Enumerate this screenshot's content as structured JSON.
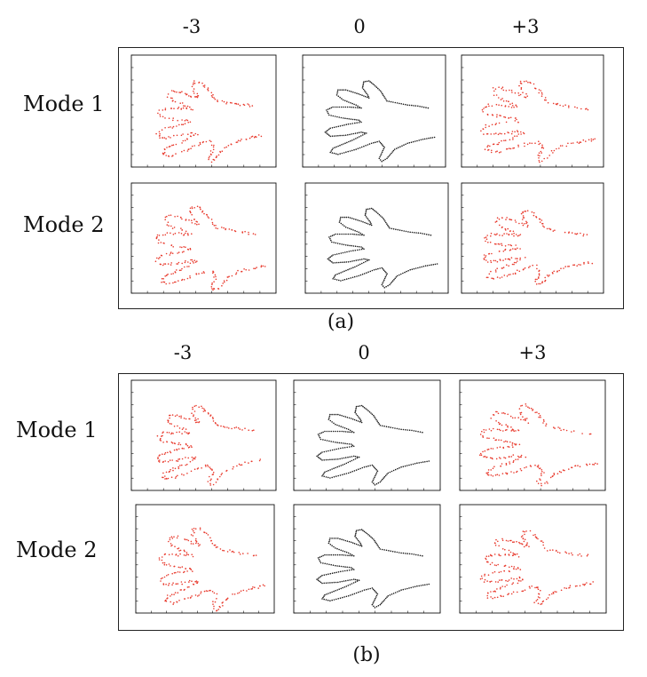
{
  "figure": {
    "panels": [
      {
        "caption": "(a)",
        "columns": [
          "-3",
          "0",
          "+3"
        ],
        "rows": [
          "Mode 1",
          "Mode 2"
        ]
      },
      {
        "caption": "(b)",
        "columns": [
          "-3",
          "0",
          "+3"
        ],
        "rows": [
          "Mode 1",
          "Mode 2"
        ]
      }
    ]
  },
  "colors": {
    "variation": "#e8392c",
    "mean": "#1a1a1a",
    "frame": "#222222"
  },
  "chart_data": [
    {
      "type": "scatter",
      "panel": "a",
      "row": "Mode 1",
      "column": "-3",
      "series": "deformed hand shape",
      "color": "#e8392c"
    },
    {
      "type": "scatter",
      "panel": "a",
      "row": "Mode 1",
      "column": "0",
      "series": "mean hand shape",
      "color": "#1a1a1a"
    },
    {
      "type": "scatter",
      "panel": "a",
      "row": "Mode 1",
      "column": "+3",
      "series": "deformed hand shape",
      "color": "#e8392c"
    },
    {
      "type": "scatter",
      "panel": "a",
      "row": "Mode 2",
      "column": "-3",
      "series": "deformed hand shape",
      "color": "#e8392c"
    },
    {
      "type": "scatter",
      "panel": "a",
      "row": "Mode 2",
      "column": "0",
      "series": "mean hand shape",
      "color": "#1a1a1a"
    },
    {
      "type": "scatter",
      "panel": "a",
      "row": "Mode 2",
      "column": "+3",
      "series": "deformed hand shape",
      "color": "#e8392c"
    },
    {
      "type": "scatter",
      "panel": "b",
      "row": "Mode 1",
      "column": "-3",
      "series": "deformed hand shape",
      "color": "#e8392c"
    },
    {
      "type": "scatter",
      "panel": "b",
      "row": "Mode 1",
      "column": "0",
      "series": "mean hand shape",
      "color": "#1a1a1a"
    },
    {
      "type": "scatter",
      "panel": "b",
      "row": "Mode 1",
      "column": "+3",
      "series": "deformed hand shape",
      "color": "#e8392c"
    },
    {
      "type": "scatter",
      "panel": "b",
      "row": "Mode 2",
      "column": "-3",
      "series": "deformed hand shape",
      "color": "#e8392c"
    },
    {
      "type": "scatter",
      "panel": "b",
      "row": "Mode 2",
      "column": "0",
      "series": "mean hand shape",
      "color": "#1a1a1a"
    },
    {
      "type": "scatter",
      "panel": "b",
      "row": "Mode 2",
      "column": "+3",
      "series": "deformed hand shape",
      "color": "#e8392c"
    }
  ]
}
